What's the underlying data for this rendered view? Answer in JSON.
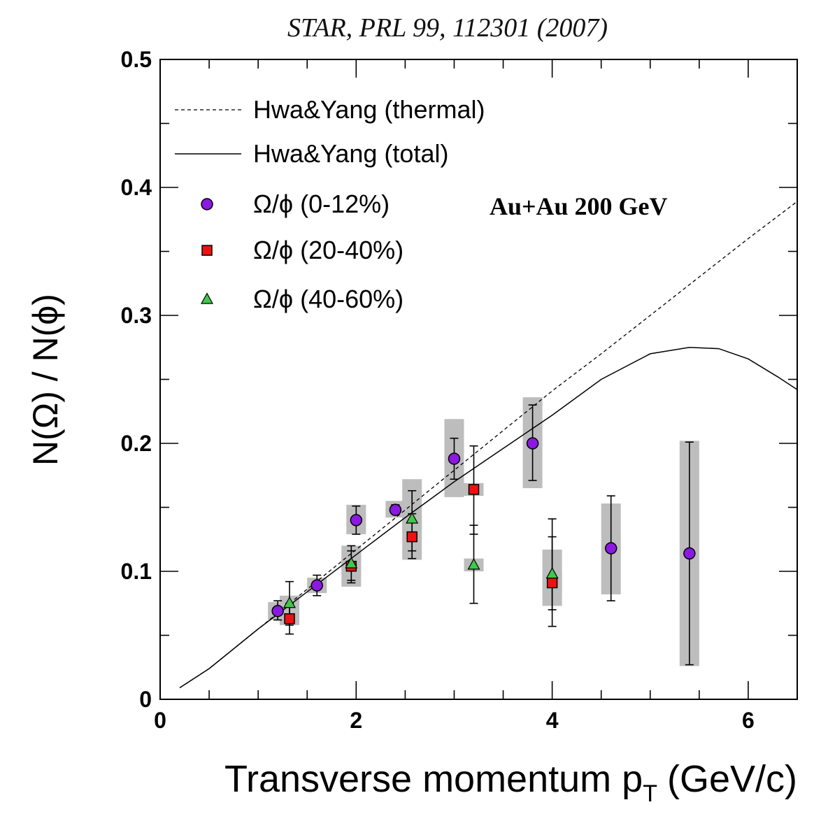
{
  "citation": "STAR, PRL 99, 112301 (2007)",
  "annotation": "Au+Au 200 GeV",
  "chart_data": {
    "type": "scatter",
    "xlabel": "Transverse momentum p",
    "xlabel_sub": "T",
    "xlabel_unit": "(GeV/c)",
    "ylabel": "N(Ω) / N(ϕ)",
    "xlim": [
      0,
      6.5
    ],
    "ylim": [
      0,
      0.5
    ],
    "x_ticks": [
      "0",
      "2",
      "4",
      "6"
    ],
    "y_ticks": [
      "0",
      "0.1",
      "0.2",
      "0.3",
      "0.4",
      "0.5"
    ],
    "legend_position": "top-left",
    "colors": {
      "purple": "#8b1ae0",
      "red": "#ee1111",
      "green": "#3fc84a",
      "sys_band": "#bdbdbd"
    },
    "curves": [
      {
        "name": "Hwa&Yang (thermal)",
        "style": "dashed",
        "x": [
          0.2,
          0.5,
          1.0,
          1.5,
          2.0,
          2.5,
          3.0,
          3.5,
          4.0,
          4.5,
          5.0,
          5.5,
          6.0,
          6.5
        ],
        "y": [
          0.009,
          0.024,
          0.055,
          0.086,
          0.117,
          0.148,
          0.179,
          0.21,
          0.241,
          0.27,
          0.3,
          0.33,
          0.36,
          0.389
        ]
      },
      {
        "name": "Hwa&Yang (total)",
        "style": "solid",
        "x": [
          0.2,
          0.5,
          1.0,
          1.5,
          2.0,
          2.5,
          3.0,
          3.5,
          4.0,
          4.5,
          5.0,
          5.4,
          5.7,
          6.0,
          6.3,
          6.5
        ],
        "y": [
          0.009,
          0.024,
          0.055,
          0.084,
          0.113,
          0.142,
          0.17,
          0.196,
          0.222,
          0.25,
          0.27,
          0.275,
          0.274,
          0.266,
          0.252,
          0.242
        ]
      }
    ],
    "series": [
      {
        "name": "Ω/ϕ (0-12%)",
        "marker": "circle",
        "color": "#8b1ae0",
        "points": [
          {
            "x": 1.2,
            "y": 0.069,
            "stat": [
              0.062,
              0.077
            ],
            "sys": [
              0.062,
              0.076
            ]
          },
          {
            "x": 1.6,
            "y": 0.089,
            "stat": [
              0.081,
              0.097
            ],
            "sys": [
              0.083,
              0.095
            ]
          },
          {
            "x": 2.0,
            "y": 0.14,
            "stat": [
              0.129,
              0.151
            ],
            "sys": [
              0.129,
              0.152
            ]
          },
          {
            "x": 2.4,
            "y": 0.148,
            "stat": [
              0.145,
              0.152
            ],
            "sys": [
              0.142,
              0.155
            ]
          },
          {
            "x": 3.0,
            "y": 0.188,
            "stat": [
              0.172,
              0.204
            ],
            "sys": [
              0.158,
              0.219
            ]
          },
          {
            "x": 3.8,
            "y": 0.2,
            "stat": [
              0.171,
              0.23
            ],
            "sys": [
              0.165,
              0.236
            ]
          },
          {
            "x": 4.6,
            "y": 0.118,
            "stat": [
              0.077,
              0.159
            ],
            "sys": [
              0.082,
              0.153
            ]
          },
          {
            "x": 5.4,
            "y": 0.114,
            "stat": [
              0.027,
              0.201
            ],
            "sys": [
              0.026,
              0.202
            ]
          }
        ]
      },
      {
        "name": "Ω/ϕ (20-40%)",
        "marker": "square",
        "color": "#ee1111",
        "points": [
          {
            "x": 1.32,
            "y": 0.063,
            "stat": [
              0.051,
              0.075
            ],
            "sys": [
              0.058,
              0.069
            ]
          },
          {
            "x": 1.95,
            "y": 0.104,
            "stat": [
              0.093,
              0.116
            ],
            "sys": [
              0.088,
              0.12
            ]
          },
          {
            "x": 2.57,
            "y": 0.127,
            "stat": [
              0.11,
              0.145
            ],
            "sys": [
              0.109,
              0.145
            ]
          },
          {
            "x": 3.2,
            "y": 0.164,
            "stat": [
              0.129,
              0.198
            ],
            "sys": [
              0.159,
              0.169
            ]
          },
          {
            "x": 4.0,
            "y": 0.091,
            "stat": [
              0.057,
              0.127
            ],
            "sys": [
              0.083,
              0.1
            ]
          }
        ]
      },
      {
        "name": "Ω/ϕ (40-60%)",
        "marker": "triangle",
        "color": "#3fc84a",
        "points": [
          {
            "x": 1.32,
            "y": 0.075,
            "stat": [
              0.058,
              0.092
            ],
            "sys": [
              0.069,
              0.081
            ]
          },
          {
            "x": 1.95,
            "y": 0.106,
            "stat": [
              0.091,
              0.12
            ],
            "sys": [
              0.096,
              0.116
            ]
          },
          {
            "x": 2.57,
            "y": 0.141,
            "stat": [
              0.116,
              0.163
            ],
            "sys": [
              0.13,
              0.172
            ]
          },
          {
            "x": 3.2,
            "y": 0.105,
            "stat": [
              0.075,
              0.136
            ],
            "sys": [
              0.1,
              0.11
            ]
          },
          {
            "x": 4.0,
            "y": 0.098,
            "stat": [
              0.07,
              0.141
            ],
            "sys": [
              0.073,
              0.117
            ]
          }
        ]
      }
    ]
  }
}
